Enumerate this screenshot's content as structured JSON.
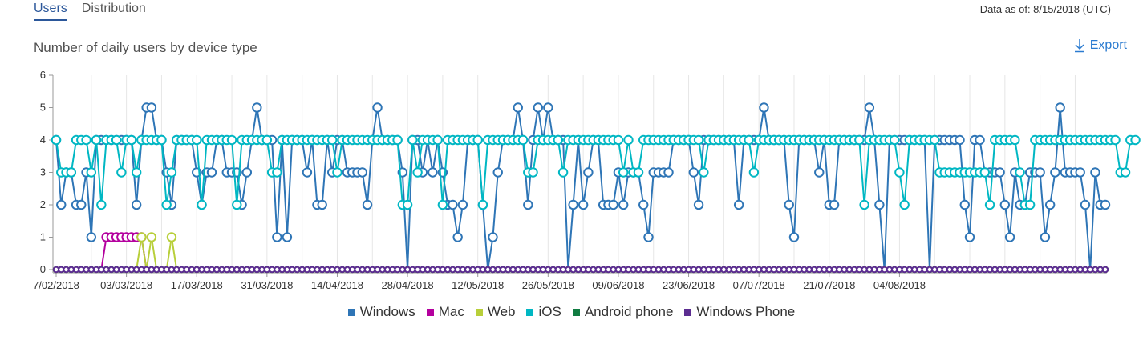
{
  "tabs": [
    {
      "label": "Users"
    },
    {
      "label": "Distribution"
    }
  ],
  "data_as_of": "Data as of: 8/15/2018 (UTC)",
  "chart_title": "Number of daily users by device type",
  "export_label": "Export",
  "export_icon": "download-arrow-icon",
  "chart_data": {
    "type": "line",
    "title": "Number of daily users by device type",
    "xlabel": "",
    "ylabel": "",
    "ylim": [
      0,
      6
    ],
    "yticks": [
      0,
      1,
      2,
      3,
      4,
      5,
      6
    ],
    "start_date": "2018-02-07",
    "x_tick_labels": [
      "7/02/2018",
      "03/03/2018",
      "17/03/2018",
      "31/03/2018",
      "14/04/2018",
      "28/04/2018",
      "12/05/2018",
      "26/05/2018",
      "09/06/2018",
      "23/06/2018",
      "07/07/2018",
      "21/07/2018",
      "04/08/2018"
    ],
    "grid": true,
    "legend_position": "bottom",
    "series": [
      {
        "name": "Windows",
        "color": "#2e75b6",
        "values": [
          4,
          2,
          3,
          3,
          2,
          2,
          3,
          1,
          4,
          4,
          4,
          4,
          4,
          4,
          4,
          4,
          2,
          4,
          5,
          5,
          4,
          4,
          3,
          2,
          4,
          4,
          4,
          4,
          3,
          2,
          3,
          3,
          4,
          4,
          3,
          3,
          3,
          2,
          3,
          4,
          5,
          4,
          4,
          4,
          1,
          4,
          1,
          4,
          4,
          4,
          3,
          4,
          2,
          2,
          4,
          3,
          4,
          4,
          3,
          3,
          3,
          3,
          2,
          4,
          5,
          4,
          4,
          4,
          4,
          3,
          0,
          4,
          4,
          3,
          4,
          3,
          4,
          3,
          2,
          2,
          1,
          2,
          4,
          4,
          4,
          2,
          0,
          1,
          3,
          4,
          4,
          4,
          5,
          4,
          2,
          4,
          5,
          4,
          5,
          4,
          4,
          4,
          0,
          2,
          4,
          2,
          3,
          4,
          4,
          2,
          2,
          2,
          3,
          2,
          3,
          3,
          3,
          2,
          1,
          3,
          3,
          3,
          3,
          4,
          4,
          4,
          4,
          3,
          2,
          4,
          4,
          4,
          4,
          4,
          4,
          4,
          2,
          4,
          4,
          4,
          4,
          5,
          4,
          4,
          4,
          4,
          2,
          1,
          4,
          4,
          4,
          4,
          3,
          4,
          2,
          2,
          4,
          4,
          4,
          4,
          4,
          4,
          5,
          4,
          2,
          0,
          4,
          4,
          4,
          4,
          4,
          4,
          4,
          4,
          0,
          4,
          4,
          4,
          4,
          4,
          4,
          2,
          1,
          4,
          4,
          3,
          3,
          3,
          3,
          2,
          1,
          3,
          2,
          2,
          3,
          3,
          3,
          1,
          2,
          3,
          5,
          3,
          3,
          3,
          3,
          2,
          0,
          3,
          2,
          2
        ]
      },
      {
        "name": "Mac",
        "color": "#b4009e",
        "values": [
          0,
          0,
          0,
          0,
          0,
          0,
          0,
          0,
          0,
          0,
          1,
          1,
          1,
          1,
          1,
          1,
          1,
          1,
          0,
          0,
          0,
          0,
          0,
          0,
          0,
          0,
          0,
          0,
          0,
          0,
          0,
          0,
          0,
          0,
          0,
          0,
          0,
          0,
          0,
          0,
          0,
          0,
          0,
          0,
          0,
          0,
          0,
          0,
          0,
          0,
          0,
          0,
          0,
          0,
          0,
          0,
          0,
          0,
          0,
          0,
          0,
          0,
          0,
          0,
          0,
          0,
          0,
          0,
          0,
          0,
          0,
          0,
          0,
          0,
          0,
          0,
          0,
          0,
          0,
          0,
          0,
          0,
          0,
          0,
          0,
          0,
          0,
          0,
          0,
          0,
          0,
          0,
          0,
          0,
          0,
          0,
          0,
          0,
          0,
          0,
          0,
          0,
          0,
          0,
          0,
          0,
          0,
          0,
          0,
          0,
          0,
          0,
          0,
          0,
          0,
          0,
          0,
          0,
          0,
          0,
          0,
          0,
          0,
          0,
          0,
          0,
          0,
          0,
          0,
          0,
          0,
          0,
          0,
          0,
          0,
          0,
          0,
          0,
          0,
          0,
          0,
          0,
          0,
          0,
          0,
          0,
          0,
          0,
          0,
          0,
          0,
          0,
          0,
          0,
          0,
          0,
          0,
          0,
          0,
          0,
          0,
          0,
          0,
          0,
          0,
          0,
          0,
          0,
          0,
          0,
          0,
          0,
          0,
          0,
          0,
          0,
          0,
          0,
          0,
          0,
          0,
          0,
          0,
          0,
          0,
          0,
          0,
          0,
          0,
          0,
          0,
          0,
          0,
          0,
          0,
          0,
          0,
          0,
          0,
          0,
          0,
          0,
          0,
          0,
          0,
          0,
          0,
          0,
          0,
          0
        ]
      },
      {
        "name": "Web",
        "color": "#b8cf3a",
        "values": [
          0,
          0,
          0,
          0,
          0,
          0,
          0,
          0,
          0,
          0,
          0,
          0,
          0,
          0,
          0,
          0,
          0,
          1,
          0,
          1,
          0,
          0,
          0,
          1,
          0,
          0,
          0,
          0,
          0,
          0,
          0,
          0,
          0,
          0,
          0,
          0,
          0,
          0,
          0,
          0,
          0,
          0,
          0,
          0,
          0,
          0,
          0,
          0,
          0,
          0,
          0,
          0,
          0,
          0,
          0,
          0,
          0,
          0,
          0,
          0,
          0,
          0,
          0,
          0,
          0,
          0,
          0,
          0,
          0,
          0,
          0,
          0,
          0,
          0,
          0,
          0,
          0,
          0,
          0,
          0,
          0,
          0,
          0,
          0,
          0,
          0,
          0,
          0,
          0,
          0,
          0,
          0,
          0,
          0,
          0,
          0,
          0,
          0,
          0,
          0,
          0,
          0,
          0,
          0,
          0,
          0,
          0,
          0,
          0,
          0,
          0,
          0,
          0,
          0,
          0,
          0,
          0,
          0,
          0,
          0,
          0,
          0,
          0,
          0,
          0,
          0,
          0,
          0,
          0,
          0,
          0,
          0,
          0,
          0,
          0,
          0,
          0,
          0,
          0,
          0,
          0,
          0,
          0,
          0,
          0,
          0,
          0,
          0,
          0,
          0,
          0,
          0,
          0,
          0,
          0,
          0,
          0,
          0,
          0,
          0,
          0,
          0,
          0,
          0,
          0,
          0,
          0,
          0,
          0,
          0,
          0,
          0,
          0,
          0,
          0,
          0,
          0,
          0,
          0,
          0,
          0,
          0,
          0,
          0,
          0,
          0,
          0,
          0,
          0,
          0,
          0,
          0,
          0,
          0,
          0,
          0,
          0,
          0,
          0,
          0,
          0,
          0,
          0,
          0,
          0,
          0,
          0,
          0,
          0,
          0
        ]
      },
      {
        "name": "iOS",
        "color": "#00b7c3",
        "values": [
          4,
          3,
          3,
          3,
          4,
          4,
          4,
          3,
          4,
          2,
          4,
          4,
          4,
          3,
          4,
          4,
          3,
          4,
          4,
          4,
          4,
          4,
          2,
          3,
          4,
          4,
          4,
          4,
          4,
          2,
          4,
          4,
          4,
          4,
          4,
          4,
          2,
          4,
          4,
          4,
          4,
          4,
          4,
          3,
          3,
          4,
          4,
          4,
          4,
          4,
          4,
          4,
          4,
          4,
          4,
          4,
          3,
          4,
          4,
          4,
          4,
          4,
          4,
          4,
          4,
          4,
          4,
          4,
          4,
          2,
          2,
          4,
          3,
          4,
          4,
          4,
          4,
          2,
          4,
          4,
          4,
          4,
          4,
          4,
          4,
          2,
          4,
          4,
          4,
          4,
          4,
          4,
          4,
          4,
          3,
          3,
          4,
          4,
          4,
          4,
          4,
          3,
          4,
          4,
          4,
          4,
          4,
          4,
          4,
          4,
          4,
          4,
          4,
          3,
          4,
          3,
          3,
          4,
          4,
          4,
          4,
          4,
          4,
          4,
          4,
          4,
          4,
          4,
          4,
          3,
          4,
          4,
          4,
          4,
          4,
          4,
          4,
          4,
          4,
          3,
          4,
          4,
          4,
          4,
          4,
          4,
          4,
          4,
          4,
          4,
          4,
          4,
          4,
          4,
          4,
          4,
          4,
          4,
          4,
          4,
          4,
          2,
          4,
          4,
          4,
          4,
          4,
          4,
          3,
          2,
          4,
          4,
          4,
          4,
          4,
          4,
          3,
          3,
          3,
          3,
          3,
          3,
          3,
          3,
          3,
          3,
          2,
          4,
          4,
          4,
          4,
          4,
          3,
          2,
          2,
          4,
          4,
          4,
          4,
          4,
          4,
          4,
          4,
          4,
          4,
          4,
          4,
          4,
          4,
          4,
          4,
          4,
          3,
          3,
          4,
          4
        ]
      },
      {
        "name": "Android phone",
        "color": "#107c41",
        "values": [
          0,
          0,
          0,
          0,
          0,
          0,
          0,
          0,
          0,
          0,
          0,
          0,
          0,
          0,
          0,
          0,
          0,
          0,
          0,
          0,
          0,
          0,
          0,
          0,
          0,
          0,
          0,
          0,
          0,
          0,
          0,
          0,
          0,
          0,
          0,
          0,
          0,
          0,
          0,
          0,
          0,
          0,
          0,
          0,
          0,
          0,
          0,
          0,
          0,
          0,
          0,
          0,
          0,
          0,
          0,
          0,
          0,
          0,
          0,
          0,
          0,
          0,
          0,
          0,
          0,
          0,
          0,
          0,
          0,
          0,
          0,
          0,
          0,
          0,
          0,
          0,
          0,
          0,
          0,
          0,
          0,
          0,
          0,
          0,
          0,
          0,
          0,
          0,
          0,
          0,
          0,
          0,
          0,
          0,
          0,
          0,
          0,
          0,
          0,
          0,
          0,
          0,
          0,
          0,
          0,
          0,
          0,
          0,
          0,
          0,
          0,
          0,
          0,
          0,
          0,
          0,
          0,
          0,
          0,
          0,
          0,
          0,
          0,
          0,
          0,
          0,
          0,
          0,
          0,
          0,
          0,
          0,
          0,
          0,
          0,
          0,
          0,
          0,
          0,
          0,
          0,
          0,
          0,
          0,
          0,
          0,
          0,
          0,
          0,
          0,
          0,
          0,
          0,
          0,
          0,
          0,
          0,
          0,
          0,
          0,
          0,
          0,
          0,
          0,
          0,
          0,
          0,
          0,
          0,
          0,
          0,
          0,
          0,
          0,
          0,
          0,
          0,
          0,
          0,
          0,
          0,
          0,
          0,
          0,
          0,
          0,
          0,
          0,
          0,
          0,
          0,
          0,
          0,
          0,
          0,
          0,
          0,
          0,
          0,
          0,
          0,
          0,
          0,
          0,
          0,
          0,
          0,
          0,
          0,
          0
        ]
      },
      {
        "name": "Windows Phone",
        "color": "#5c2d91",
        "values": [
          0,
          0,
          0,
          0,
          0,
          0,
          0,
          0,
          0,
          0,
          0,
          0,
          0,
          0,
          0,
          0,
          0,
          0,
          0,
          0,
          0,
          0,
          0,
          0,
          0,
          0,
          0,
          0,
          0,
          0,
          0,
          0,
          0,
          0,
          0,
          0,
          0,
          0,
          0,
          0,
          0,
          0,
          0,
          0,
          0,
          0,
          0,
          0,
          0,
          0,
          0,
          0,
          0,
          0,
          0,
          0,
          0,
          0,
          0,
          0,
          0,
          0,
          0,
          0,
          0,
          0,
          0,
          0,
          0,
          0,
          0,
          0,
          0,
          0,
          0,
          0,
          0,
          0,
          0,
          0,
          0,
          0,
          0,
          0,
          0,
          0,
          0,
          0,
          0,
          0,
          0,
          0,
          0,
          0,
          0,
          0,
          0,
          0,
          0,
          0,
          0,
          0,
          0,
          0,
          0,
          0,
          0,
          0,
          0,
          0,
          0,
          0,
          0,
          0,
          0,
          0,
          0,
          0,
          0,
          0,
          0,
          0,
          0,
          0,
          0,
          0,
          0,
          0,
          0,
          0,
          0,
          0,
          0,
          0,
          0,
          0,
          0,
          0,
          0,
          0,
          0,
          0,
          0,
          0,
          0,
          0,
          0,
          0,
          0,
          0,
          0,
          0,
          0,
          0,
          0,
          0,
          0,
          0,
          0,
          0,
          0,
          0,
          0,
          0,
          0,
          0,
          0,
          0,
          0,
          0,
          0,
          0,
          0,
          0,
          0,
          0,
          0,
          0,
          0,
          0,
          0,
          0,
          0,
          0,
          0,
          0,
          0,
          0,
          0,
          0,
          0,
          0,
          0,
          0,
          0,
          0,
          0,
          0,
          0,
          0,
          0,
          0,
          0,
          0,
          0,
          0,
          0,
          0,
          0,
          0
        ]
      }
    ]
  }
}
